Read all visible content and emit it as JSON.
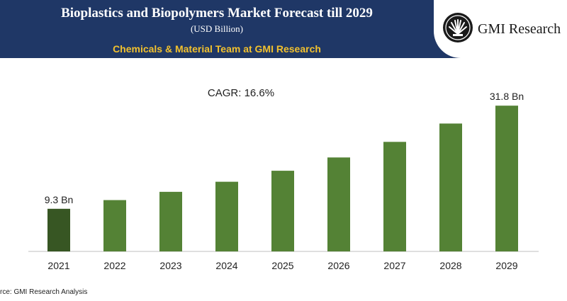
{
  "header": {
    "title": "Bioplastics and Biopolymers Market Forecast till 2029",
    "subtitle": "(USD Billion)",
    "team": "Chemicals & Material Team at GMI Research",
    "logo_text": "GMI Research"
  },
  "source_text": "rce: GMI Research Analysis",
  "chart_data": {
    "type": "bar",
    "categories": [
      "2021",
      "2022",
      "2023",
      "2024",
      "2025",
      "2026",
      "2027",
      "2028",
      "2029"
    ],
    "values": [
      9.3,
      11.2,
      13.0,
      15.2,
      17.6,
      20.5,
      23.9,
      27.9,
      31.8
    ],
    "data_labels": [
      "9.3 Bn",
      "",
      "",
      "",
      "",
      "",
      "",
      "",
      "31.8 Bn"
    ],
    "annotation": "CAGR: 16.6%",
    "ylim": [
      0,
      36
    ],
    "grid": false,
    "legend": "none",
    "colors": {
      "bar": "#548235",
      "highlight": "#375623"
    },
    "highlight_index": 0
  }
}
